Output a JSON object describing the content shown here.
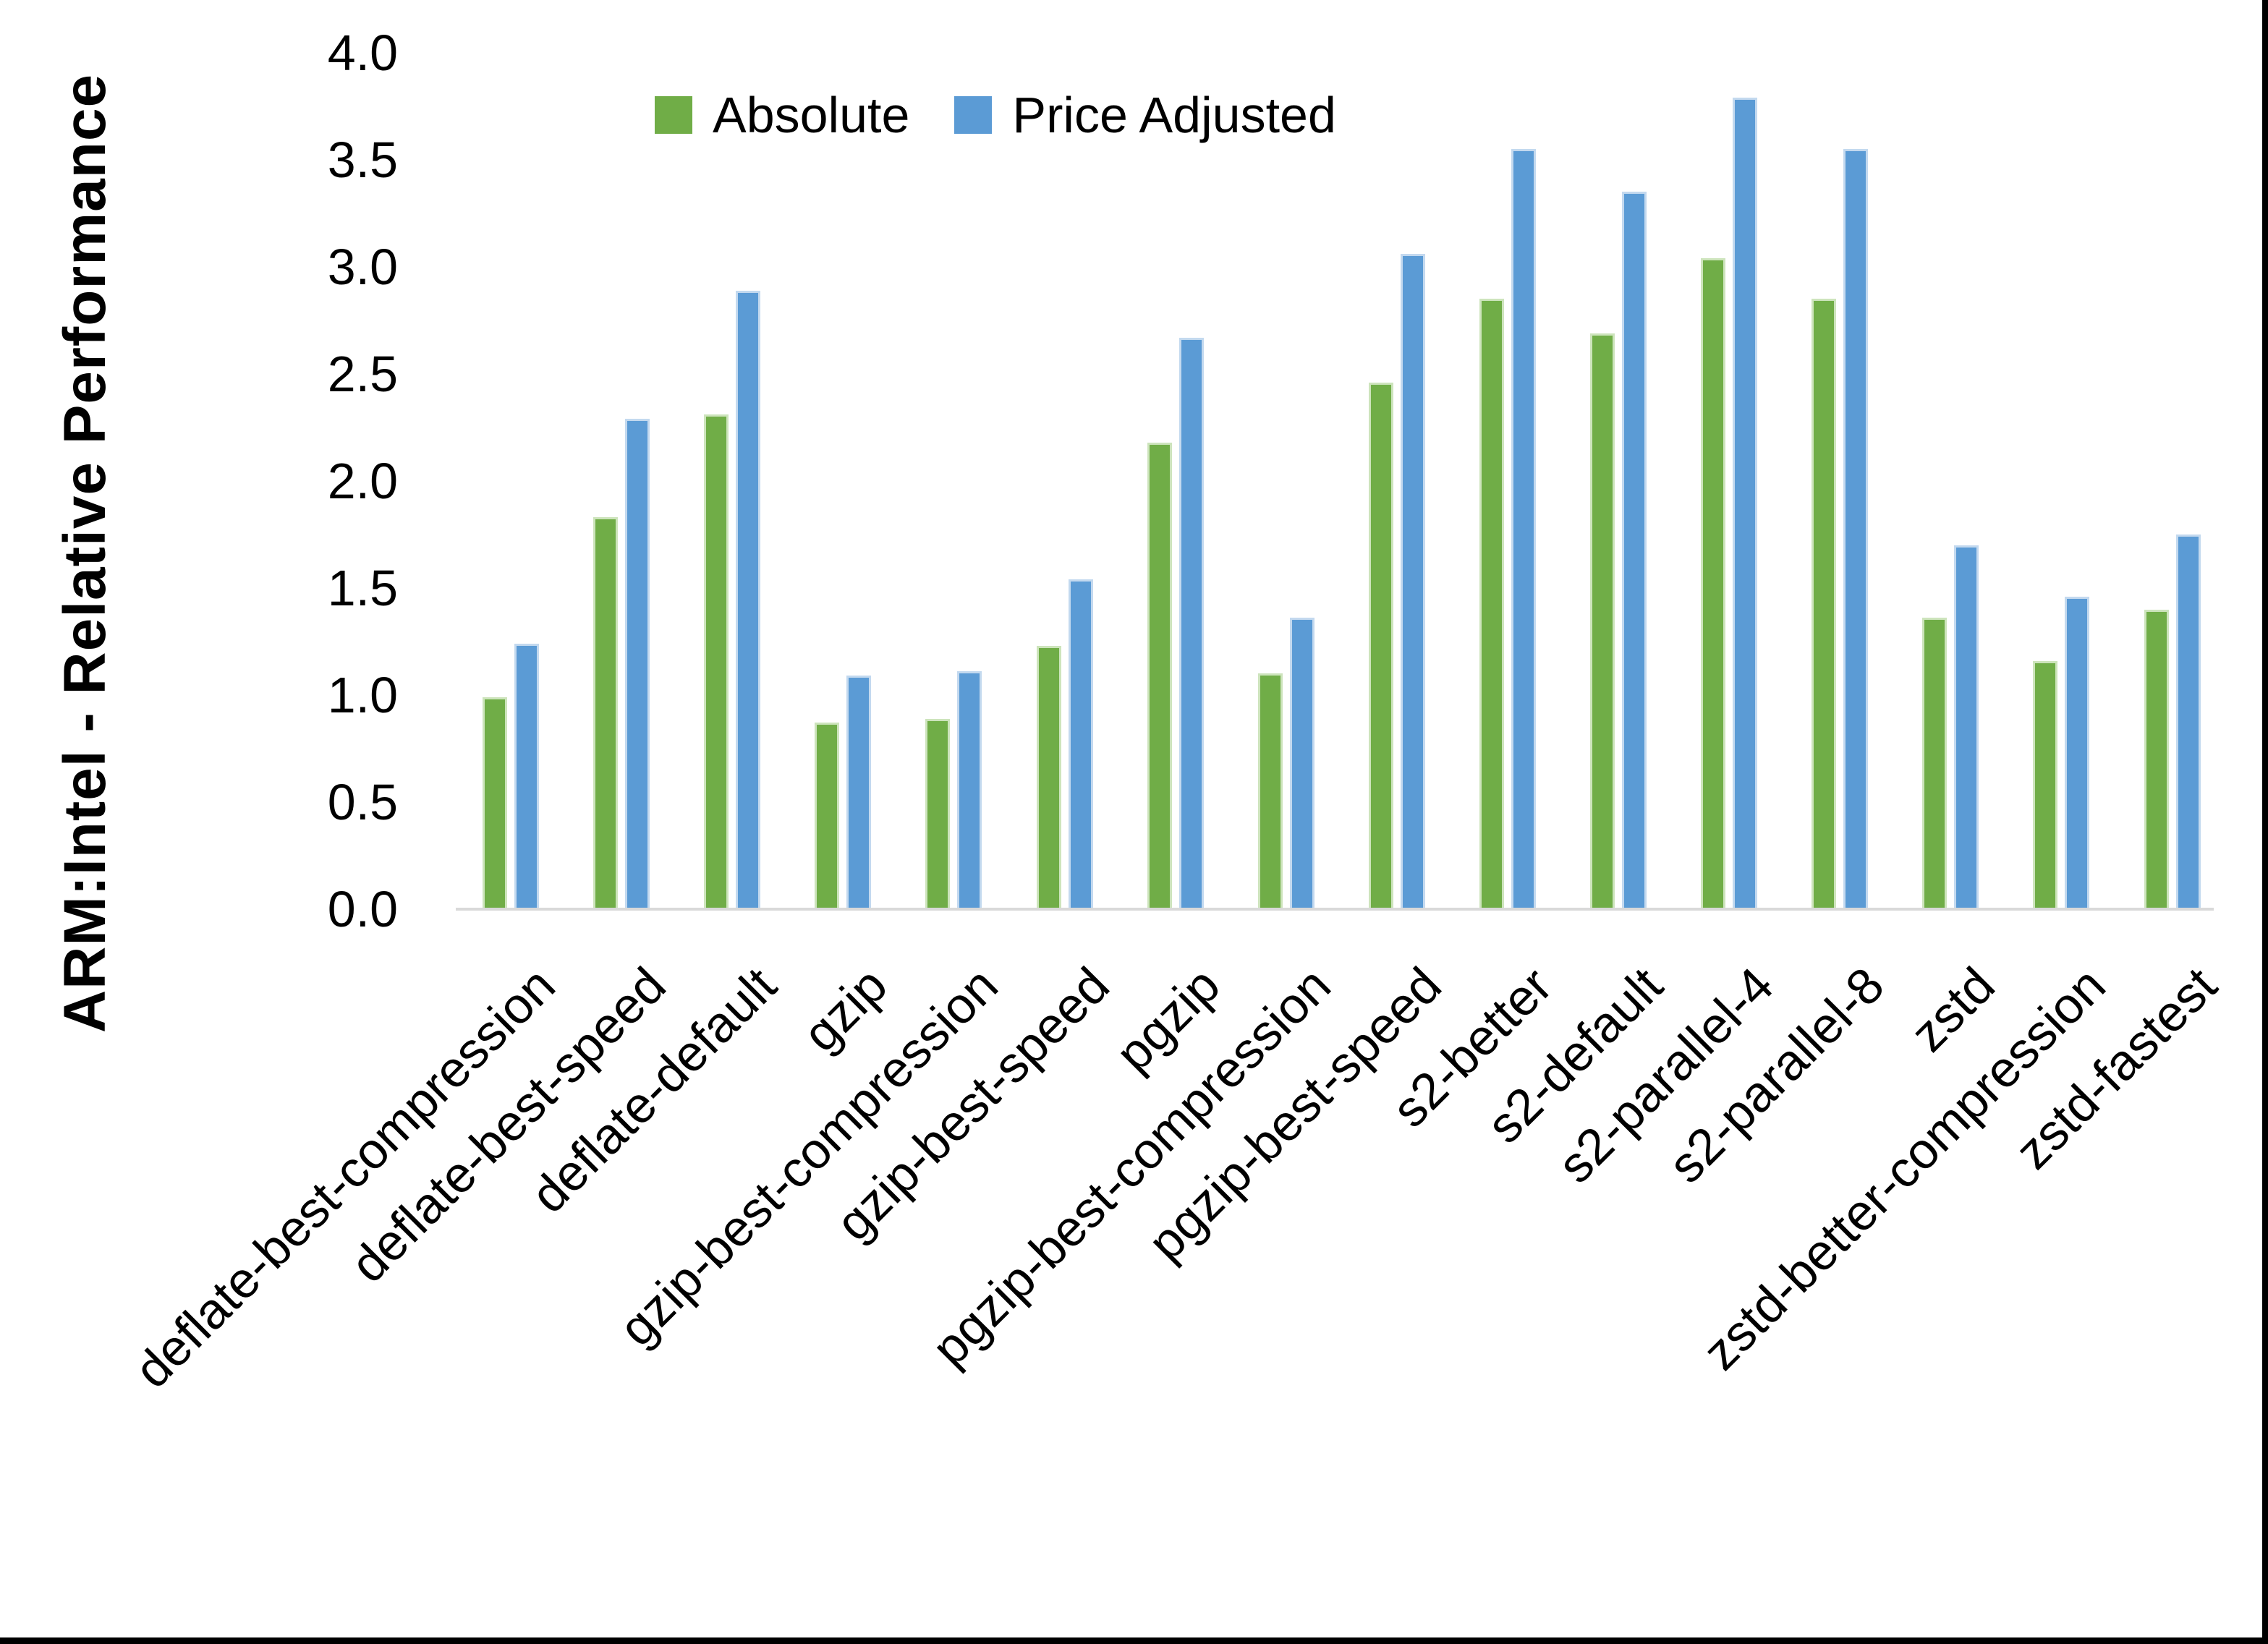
{
  "chart_data": {
    "type": "bar",
    "title": "",
    "xlabel": "",
    "ylabel": "ARM:Intel - Relative Performance",
    "ylim": [
      0.0,
      4.0
    ],
    "ytick_step": 0.5,
    "yticks": [
      "0.0",
      "0.5",
      "1.0",
      "1.5",
      "2.0",
      "2.5",
      "3.0",
      "3.5",
      "4.0"
    ],
    "grid": false,
    "legend_position": "top-center",
    "categories": [
      "deflate-best-compression",
      "deflate-best-speed",
      "deflate-default",
      "gzip",
      "gzip-best-compression",
      "gzip-best-speed",
      "pgzip",
      "pgzip-best-compression",
      "pgzip-best-speed",
      "s2-better",
      "s2-default",
      "s2-parallel-4",
      "s2-parallel-8",
      "zstd",
      "zstd-better-compression",
      "zstd-fastest"
    ],
    "series": [
      {
        "name": "Absolute",
        "color": "#70AD47",
        "edge_color": "#CDE4BC",
        "values": [
          0.99,
          1.83,
          2.31,
          0.87,
          0.89,
          1.23,
          2.18,
          1.1,
          2.46,
          2.85,
          2.69,
          3.04,
          2.85,
          1.36,
          1.16,
          1.4
        ]
      },
      {
        "name": "Price Adjusted",
        "color": "#5B9BD5",
        "edge_color": "#C3D9EF",
        "values": [
          1.24,
          2.29,
          2.89,
          1.09,
          1.11,
          1.54,
          2.67,
          1.36,
          3.06,
          3.55,
          3.35,
          3.79,
          3.55,
          1.7,
          1.46,
          1.75
        ]
      }
    ]
  },
  "colors": {
    "background": "#FFFFFF",
    "text": "#000000",
    "axis_line": "#D9D9D9",
    "frame": "#000000"
  }
}
